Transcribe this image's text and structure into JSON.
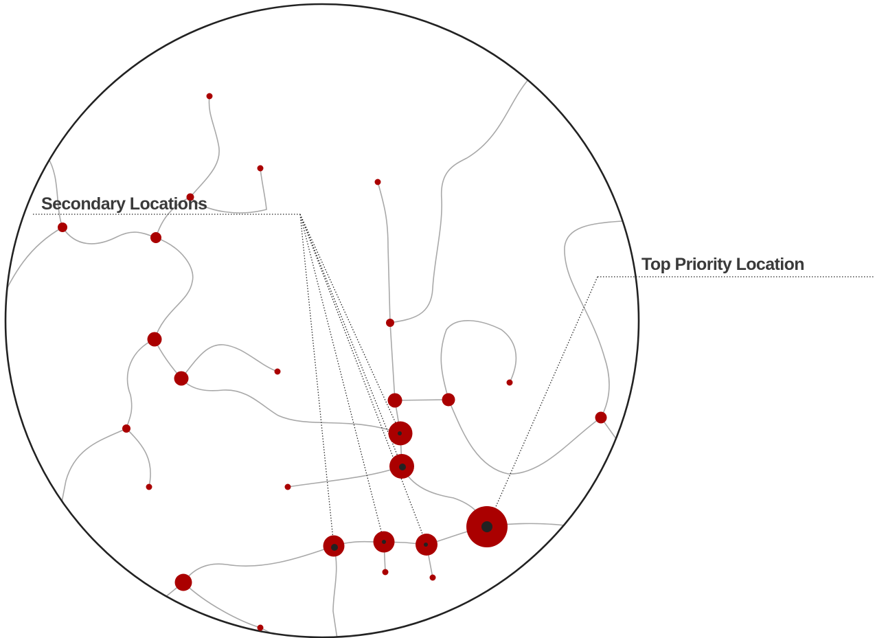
{
  "labels": {
    "secondary": "Secondary Locations",
    "top_priority": "Top Priority Location"
  },
  "colors": {
    "node": "#aa0000",
    "core": "#222222",
    "road": "#a8a8a8",
    "boundary": "#222222",
    "label_text": "#3a3a3a",
    "leader": "#222222"
  },
  "legend_groups": {
    "secondary": [
      "hub-north",
      "hub-center",
      "node-bottom-left",
      "node-bottom-mid",
      "node-bottom-right"
    ],
    "top_priority": [
      "hub-major"
    ]
  }
}
